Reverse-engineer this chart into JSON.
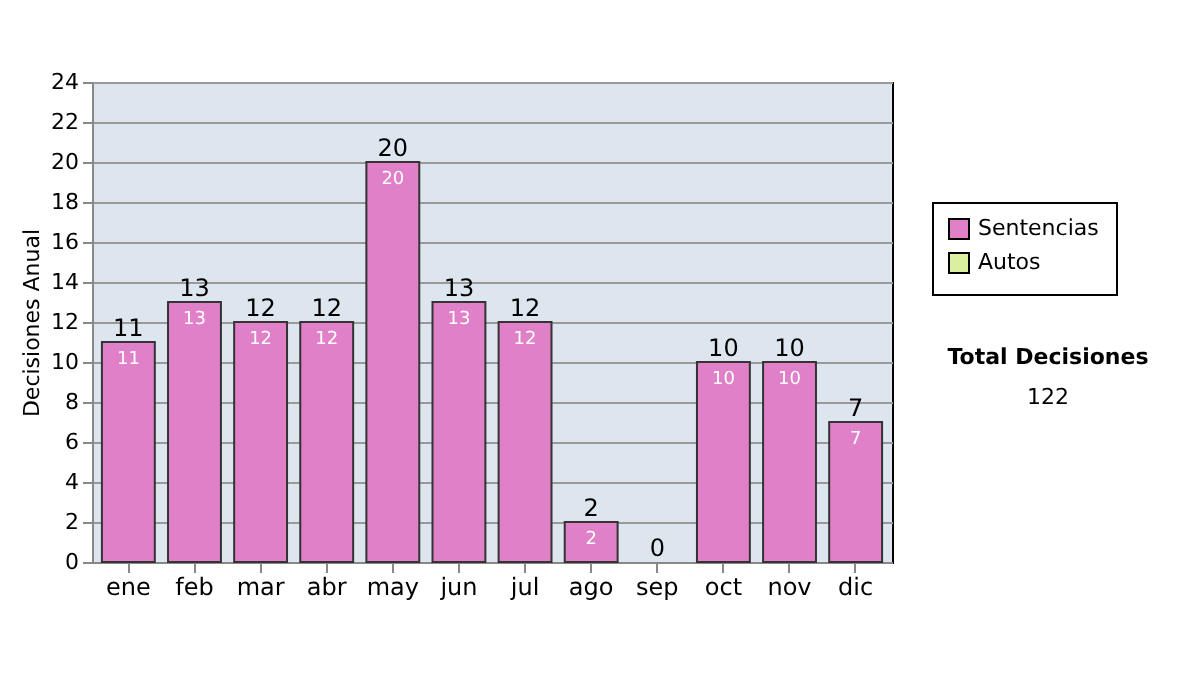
{
  "chart_data": {
    "type": "bar",
    "stacked": true,
    "ylabel": "Decisiones Anual",
    "categories": [
      "ene",
      "feb",
      "mar",
      "abr",
      "may",
      "jun",
      "jul",
      "ago",
      "sep",
      "oct",
      "nov",
      "dic"
    ],
    "series": [
      {
        "name": "Sentencias",
        "color": "#e080c8",
        "values": [
          11,
          13,
          12,
          12,
          20,
          13,
          12,
          2,
          0,
          10,
          10,
          7
        ],
        "value_labels": [
          "11",
          "13",
          "12",
          "12",
          "20",
          "13",
          "12",
          "2",
          null,
          "10",
          "10",
          "7"
        ]
      },
      {
        "name": "Autos",
        "color": "#d8f0a0",
        "values": [
          0,
          0,
          0,
          0,
          0,
          0,
          0,
          0,
          0,
          0,
          0,
          0
        ]
      }
    ],
    "totals": [
      "11",
      "13",
      "12",
      "12",
      "20",
      "13",
      "12",
      "2",
      "0",
      "10",
      "10",
      "7"
    ],
    "ylim": [
      0,
      24
    ],
    "yticks": [
      0,
      2,
      4,
      6,
      8,
      10,
      12,
      14,
      16,
      18,
      20,
      22,
      24
    ],
    "grid": "y",
    "legend": "right",
    "annotations": [
      "Total Decisiones",
      "122"
    ]
  }
}
